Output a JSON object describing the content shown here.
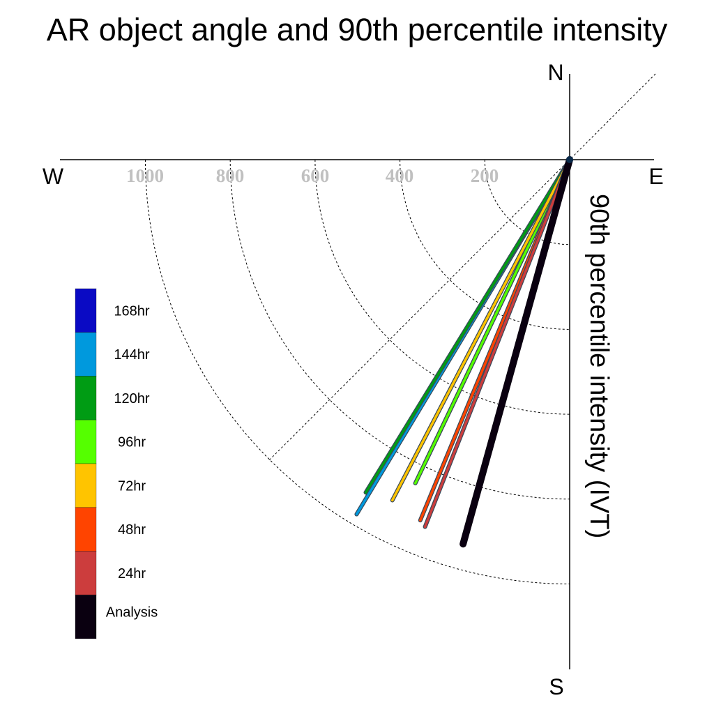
{
  "chart_data": {
    "type": "polar-vector",
    "title": "AR object angle and 90th percentile intensity",
    "axis_label": "90th percentile intensity (IVT)",
    "compass": {
      "north": "N",
      "south": "S",
      "east": "E",
      "west": "W"
    },
    "ring_values": [
      200,
      400,
      600,
      800,
      1000
    ],
    "ring_labels": [
      "1000",
      "800",
      "600",
      "400",
      "200"
    ],
    "r_max": 1170,
    "grid": true,
    "legend_position": "left",
    "series": [
      {
        "name": "168hr",
        "color": "#0a0ac4",
        "angle_deg": 205.5,
        "intensity": 790
      },
      {
        "name": "144hr",
        "color": "#0099dd",
        "angle_deg": 211.0,
        "intensity": 975
      },
      {
        "name": "120hr",
        "color": "#009c14",
        "angle_deg": 211.5,
        "intensity": 920
      },
      {
        "name": "96hr",
        "color": "#55ff00",
        "angle_deg": 205.5,
        "intensity": 845
      },
      {
        "name": "72hr",
        "color": "#ffc400",
        "angle_deg": 207.5,
        "intensity": 905
      },
      {
        "name": "48hr",
        "color": "#ff4400",
        "angle_deg": 202.5,
        "intensity": 920
      },
      {
        "name": "24hr",
        "color": "#cc3d3d",
        "angle_deg": 201.5,
        "intensity": 930
      },
      {
        "name": "Analysis",
        "color": "#0a0010",
        "angle_deg": 195.5,
        "intensity": 940
      }
    ]
  }
}
